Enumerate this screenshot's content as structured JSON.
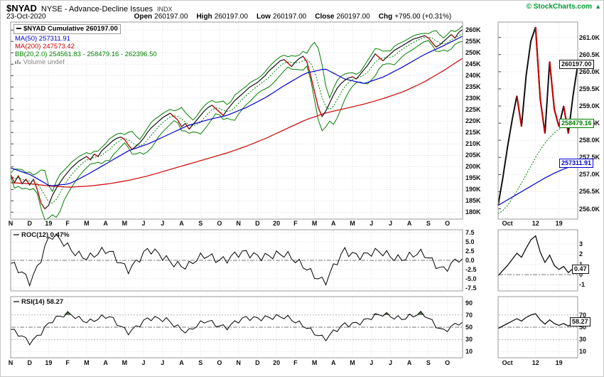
{
  "header": {
    "symbol": "$NYAD",
    "name": "NYSE - Advance-Decline Issues",
    "type": "INDX",
    "copyright": "© StockCharts.com",
    "arrow": "▲",
    "date": "23-Oct-2020",
    "fields": [
      {
        "label": "Open",
        "value": "260197.00"
      },
      {
        "label": "High",
        "value": "260197.00"
      },
      {
        "label": "Low",
        "value": "260197.00"
      },
      {
        "label": "Close",
        "value": "260197.00"
      },
      {
        "label": "Chg",
        "value": "+795.00 (+0.31%)"
      }
    ]
  },
  "legend": {
    "main": "$NYAD Cumulative 260197.00",
    "ma50": "MA(50) 257311.91",
    "ma200": "MA(200) 247573.42",
    "bb": "BB(20,2.0) 254561.83 - 258479.16 - 262396.50",
    "volume": "Volume undef"
  },
  "panels": {
    "roc_label": "ROC(12) 0.47%",
    "rsi_label": "RSI(14) 58.27"
  },
  "colors": {
    "price": "#111111",
    "down": "#CC0000",
    "ma50": "#0000CC",
    "ma200": "#CC0000",
    "bb": "#008000",
    "grid": "#DEDEDE",
    "level": "#777777",
    "border": "#999999",
    "copyright": "#009933",
    "fill_overbought": "#5C7452"
  },
  "chart_data": {
    "type": "line",
    "title": "$NYAD NYSE - Advance-Decline Issues (Cumulative)",
    "x_labels": [
      "N",
      "D",
      "19",
      "F",
      "M",
      "A",
      "M",
      "J",
      "J",
      "A",
      "S",
      "O",
      "N",
      "D",
      "20",
      "F",
      "M",
      "A",
      "M",
      "J",
      "J",
      "A",
      "S",
      "O"
    ],
    "main": {
      "ylabel": "NYAD Cumulative",
      "ylim": [
        177.0,
        263.5
      ],
      "y_ticks": [
        260,
        255,
        250,
        245,
        240,
        235,
        230,
        225,
        220,
        215,
        210,
        205,
        200,
        195,
        190,
        185,
        180
      ],
      "cumulative": [
        196.5,
        193.0,
        196.0,
        192.5,
        194.5,
        192.0,
        194.5,
        190.0,
        184.0,
        181.5,
        183.0,
        187.5,
        190.5,
        193.0,
        195.5,
        197.5,
        199.5,
        201.0,
        202.5,
        203.5,
        204.5,
        203.0,
        205.5,
        204.5,
        207.0,
        208.5,
        210.0,
        211.5,
        212.5,
        213.0,
        212.0,
        209.5,
        207.5,
        209.0,
        210.5,
        212.5,
        215.0,
        217.0,
        218.5,
        220.0,
        221.5,
        222.5,
        223.5,
        222.0,
        220.5,
        217.5,
        219.0,
        216.5,
        218.5,
        220.5,
        222.5,
        224.5,
        226.0,
        227.0,
        225.5,
        224.0,
        222.5,
        225.0,
        227.0,
        229.0,
        230.5,
        232.0,
        233.5,
        235.0,
        236.0,
        237.0,
        238.5,
        240.0,
        242.0,
        243.5,
        245.0,
        246.5,
        247.0,
        245.5,
        244.0,
        246.0,
        247.5,
        248.5,
        246.0,
        240.0,
        233.0,
        226.0,
        222.0,
        224.5,
        228.0,
        231.5,
        234.5,
        236.5,
        238.0,
        239.0,
        239.5,
        238.5,
        240.5,
        242.5,
        244.5,
        247.0,
        249.5,
        248.0,
        246.5,
        248.0,
        249.5,
        251.0,
        252.0,
        253.0,
        254.0,
        255.0,
        256.0,
        256.5,
        257.0,
        257.5,
        256.5,
        254.5,
        252.5,
        253.5,
        255.0,
        256.5,
        258.0,
        256.5,
        259.0,
        260.197
      ],
      "ma50_monthly": [
        199.5,
        196.5,
        191.5,
        192.5,
        197.0,
        202.0,
        207.0,
        210.0,
        214.0,
        218.0,
        220.5,
        222.5,
        226.0,
        230.5,
        236.0,
        241.0,
        243.0,
        238.5,
        236.5,
        239.5,
        244.0,
        249.0,
        253.0,
        257.3
      ],
      "ma200_monthly": [
        193.0,
        192.5,
        191.5,
        191.0,
        191.5,
        192.5,
        194.0,
        196.0,
        198.5,
        201.0,
        203.5,
        206.0,
        209.0,
        212.5,
        216.5,
        220.5,
        223.5,
        225.5,
        227.5,
        230.0,
        233.0,
        237.0,
        242.0,
        247.6
      ],
      "bb": {
        "window": 4,
        "mult": 2,
        "pad": 0.7,
        "last_lower": 254561.83,
        "last_mid": 258479.16,
        "last_upper": 262396.5
      }
    },
    "roc": {
      "ylim": [
        -8.3,
        8.3
      ],
      "ticks": [
        7.5,
        5,
        2.5,
        0,
        -2.5,
        -5,
        -7.5
      ],
      "monthly": [
        -1.5,
        -5.5,
        6.8,
        3.0,
        1.2,
        2.0,
        -1.8,
        2.2,
        0.8,
        -2.2,
        1.6,
        0.4,
        1.6,
        1.8,
        0.8,
        -1.0,
        -6.8,
        3.2,
        1.2,
        1.8,
        1.0,
        1.2,
        -1.8,
        0.5
      ],
      "current": 0.47
    },
    "rsi": {
      "ylim": [
        0,
        100
      ],
      "ticks": [
        90,
        70,
        50,
        30,
        10
      ],
      "levels": {
        "overbought": 70,
        "mid": 50,
        "oversold": 30
      },
      "monthly": [
        44,
        26,
        58,
        72,
        60,
        66,
        44,
        62,
        64,
        40,
        62,
        50,
        64,
        68,
        64,
        54,
        28,
        56,
        60,
        71,
        66,
        70,
        46,
        58.3
      ],
      "current": 58.27
    },
    "inset": {
      "x_labels": [
        {
          "text": "Oct",
          "i": 2
        },
        {
          "text": "12",
          "i": 8
        },
        {
          "text": "19",
          "i": 13
        }
      ],
      "main": {
        "ylim": [
          255.7,
          261.45
        ],
        "y_ticks": [
          261.0,
          260.5,
          260.0,
          259.5,
          259.0,
          258.5,
          258.0,
          257.5,
          257.0,
          256.5,
          256.0
        ],
        "price": [
          256.1,
          256.9,
          257.8,
          258.6,
          259.3,
          258.4,
          259.9,
          260.9,
          261.3,
          259.2,
          258.2,
          260.3,
          258.9,
          258.4,
          259.0,
          258.2,
          259.3,
          260.197
        ],
        "ma50": [
          256.1,
          256.18,
          256.26,
          256.34,
          256.42,
          256.5,
          256.58,
          256.66,
          256.74,
          256.82,
          256.9,
          256.97,
          257.04,
          257.1,
          257.16,
          257.21,
          257.26,
          257.31
        ],
        "bb_mid": [
          255.85,
          255.95,
          256.1,
          256.3,
          256.52,
          256.75,
          257.0,
          257.25,
          257.5,
          257.72,
          257.92,
          258.08,
          258.22,
          258.32,
          258.4,
          258.44,
          258.47,
          258.48
        ],
        "price_labels": [
          {
            "text": "260197.00",
            "value": 260.197,
            "color": "#111111"
          },
          {
            "text": "258479.16",
            "value": 258.479,
            "color": "#008000"
          },
          {
            "text": "257311.91",
            "value": 257.312,
            "color": "#0000CC"
          }
        ]
      },
      "roc": {
        "ylim": [
          -1.6,
          4.4
        ],
        "ticks": [
          3,
          2,
          1,
          0,
          -1
        ],
        "values": [
          -0.1,
          0.4,
          0.9,
          1.5,
          2.1,
          1.7,
          2.6,
          3.4,
          3.8,
          2.2,
          1.2,
          1.9,
          0.9,
          0.5,
          0.8,
          0.2,
          0.6,
          0.47
        ],
        "label": "0.47"
      },
      "rsi": {
        "ylim": [
          0,
          100
        ],
        "ticks": [
          70,
          50,
          30,
          10
        ],
        "values": [
          48,
          52,
          56,
          60,
          64,
          60,
          66,
          70,
          72,
          62,
          55,
          62,
          56,
          53,
          56,
          52,
          56,
          58.27
        ],
        "label": "58.27"
      }
    }
  }
}
